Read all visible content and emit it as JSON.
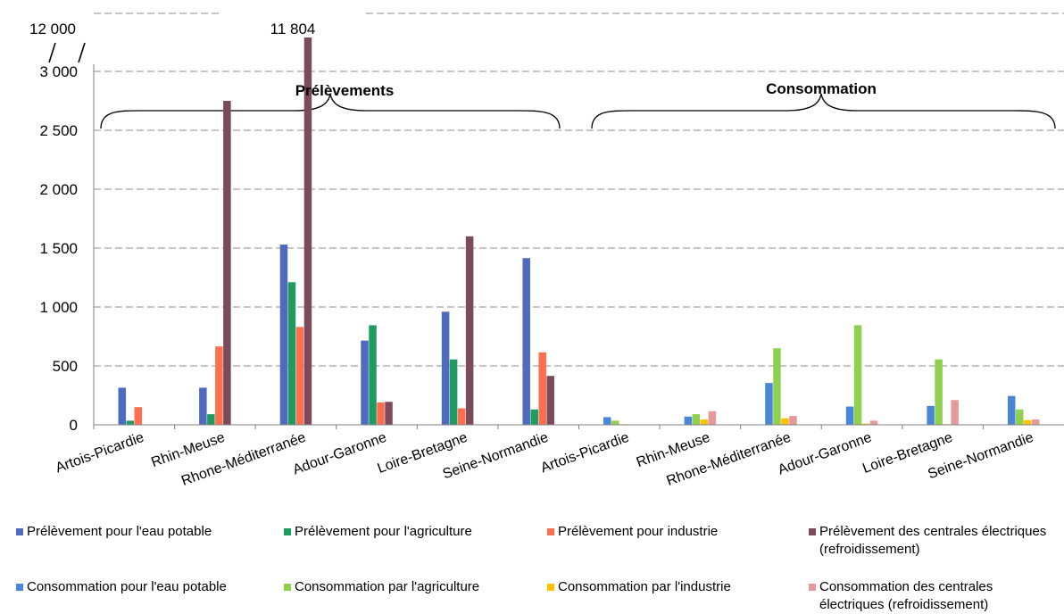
{
  "chart_data": {
    "type": "bar",
    "axis_break": {
      "upper_label": "12 000"
    },
    "ylim": [
      0,
      3000
    ],
    "yticks": [
      "0",
      "500",
      "1 000",
      "1 500",
      "2 000",
      "2 500",
      "3 000"
    ],
    "ytick_values": [
      0,
      500,
      1000,
      1500,
      2000,
      2500,
      3000
    ],
    "grid": true,
    "legend_placement": "bottom",
    "groups": [
      {
        "title": "Prélèvements",
        "categories": [
          "Artois-Picardie",
          "Rhin-Meuse",
          "Rhone-Méditerranée",
          "Adour-Garonne",
          "Loire-Bretagne",
          "Seine-Normandie"
        ],
        "series": [
          {
            "name": "Prélèvement pour l'eau potable",
            "color": "#4f6bbf",
            "values": [
              315,
              315,
              1530,
              715,
              960,
              1415
            ]
          },
          {
            "name": "Prélèvement pour l'agriculture",
            "color": "#1f9b5f",
            "values": [
              35,
              90,
              1210,
              845,
              555,
              130
            ]
          },
          {
            "name": "Prélèvement pour industrie",
            "color": "#ff6f4f",
            "values": [
              150,
              665,
              830,
              190,
              140,
              615
            ]
          },
          {
            "name": "Prélèvement des centrales électriques (refroidissement)",
            "color": "#7b4a5b",
            "values": [
              0,
              2750,
              11804,
              195,
              1600,
              415
            ]
          }
        ]
      },
      {
        "title": "Consommation",
        "categories": [
          "Artois-Picardie",
          "Rhin-Meuse",
          "Rhone-Méditerranée",
          "Adour-Garonne",
          "Loire-Bretagne",
          "Seine-Normandie"
        ],
        "series": [
          {
            "name": "Consommation pour l'eau potable",
            "color": "#4a86d8",
            "values": [
              65,
              70,
              355,
              155,
              160,
              245
            ]
          },
          {
            "name": "Consommation par l'agriculture",
            "color": "#8fd14f",
            "values": [
              35,
              90,
              650,
              845,
              555,
              130
            ]
          },
          {
            "name": "Consommation par l'industrie",
            "color": "#ffc000",
            "values": [
              5,
              45,
              55,
              10,
              5,
              40
            ]
          },
          {
            "name": "Consommation des centrales électriques (refroidissement)",
            "color": "#e39a9c",
            "values": [
              0,
              115,
              75,
              35,
              210,
              45
            ]
          }
        ]
      }
    ],
    "annotations": [
      {
        "text": "11 804",
        "value": 11804
      }
    ]
  }
}
